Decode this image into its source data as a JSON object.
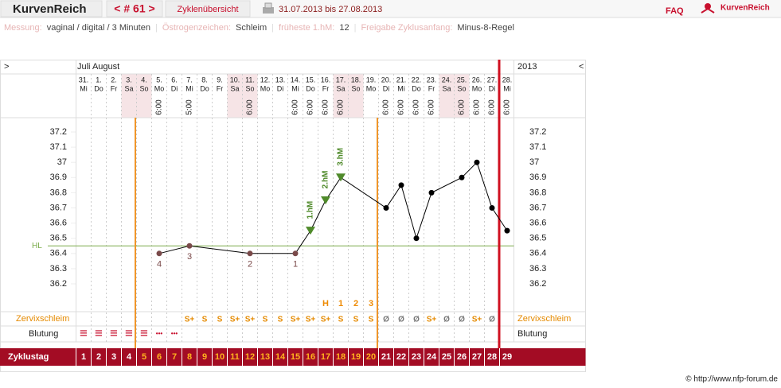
{
  "header": {
    "brand": "KurvenReich",
    "cycle_nav": "< # 61 >",
    "overview": "Zyklenübersicht",
    "date_range": "31.07.2013 bis 27.08.2013",
    "faq": "FAQ",
    "logo": "KurvenReich"
  },
  "info": [
    {
      "label": "Messung:",
      "value": "vaginal / digital / 3 Minuten"
    },
    {
      "label": "Östrogenzeichen:",
      "value": "Schleim"
    },
    {
      "label": "früheste 1.hM:",
      "value": 12
    },
    {
      "label": "Freigabe Zyklusanfang:",
      "value": "Minus-8-Regel"
    }
  ],
  "footer": "© http://www.nfp-forum.de",
  "chart_data": {
    "type": "line",
    "nav_prev": ">",
    "nav_next": "<",
    "months": "Juli August",
    "year": "2013",
    "categories": [
      "31.",
      "1.",
      "2.",
      "3.",
      "4.",
      "5.",
      "6.",
      "7.",
      "8.",
      "9.",
      "10.",
      "11.",
      "12.",
      "13.",
      "14.",
      "15.",
      "16.",
      "17.",
      "18.",
      "19.",
      "20.",
      "21.",
      "22.",
      "23.",
      "24.",
      "25.",
      "26.",
      "27.",
      "28."
    ],
    "weekdays": [
      "Mi",
      "Do",
      "Fr",
      "Sa",
      "So",
      "Mo",
      "Di",
      "Mi",
      "Do",
      "Fr",
      "Sa",
      "So",
      "Mo",
      "Di",
      "Mi",
      "Do",
      "Fr",
      "Sa",
      "So",
      "Mo",
      "Di",
      "Mi",
      "Do",
      "Fr",
      "Sa",
      "So",
      "Mo",
      "Di",
      "Mi"
    ],
    "times": [
      null,
      null,
      null,
      null,
      null,
      "6:00",
      null,
      "5:00",
      null,
      null,
      null,
      "6:00",
      null,
      null,
      "6:00",
      "6:00",
      "6:00",
      "6:00",
      null,
      null,
      "6:00",
      "6:00",
      "6:00",
      "6:00",
      null,
      "6:00",
      "6:00",
      "6:00",
      "6:00"
    ],
    "cycle_days": [
      1,
      2,
      3,
      4,
      5,
      6,
      7,
      8,
      9,
      10,
      11,
      12,
      13,
      14,
      15,
      16,
      17,
      18,
      19,
      20,
      21,
      22,
      23,
      24,
      25,
      26,
      27,
      28,
      29
    ],
    "temperature": {
      "x": [
        6,
        8,
        12,
        15,
        16,
        17,
        18,
        21,
        22,
        23,
        24,
        26,
        27,
        28,
        29
      ],
      "values": [
        36.4,
        36.45,
        36.4,
        36.4,
        36.55,
        36.75,
        36.9,
        36.7,
        36.85,
        36.5,
        36.8,
        36.9,
        37.0,
        36.7,
        36.55
      ],
      "point_labels": [
        "4",
        "3",
        "2",
        "1",
        "1.hM",
        "2.hM",
        "3.hM",
        null,
        null,
        null,
        null,
        null,
        null,
        null,
        null
      ],
      "color": "#000000"
    },
    "ylim": [
      36.1,
      37.3
    ],
    "yticks": [
      36.2,
      36.3,
      36.4,
      36.5,
      36.6,
      36.7,
      36.8,
      36.9,
      {
        "value": 37.0,
        "label": "37"
      },
      37.1,
      37.2
    ],
    "hl": {
      "label": "HL",
      "value": 36.45,
      "color": "#7aab4a"
    },
    "peak_labels": [
      null,
      null,
      null,
      null,
      null,
      null,
      null,
      null,
      null,
      null,
      null,
      null,
      null,
      null,
      null,
      null,
      "H",
      "1",
      "2",
      "3",
      null,
      null,
      null,
      null,
      null,
      null,
      null,
      null,
      null
    ],
    "mucus_label": "Zervixschleim",
    "mucus": [
      null,
      null,
      null,
      null,
      null,
      null,
      null,
      "S+",
      "S",
      "S",
      "S+",
      "S+",
      "S",
      "S",
      "S+",
      "S+",
      "S+",
      "S",
      "S",
      "S",
      "Ø",
      "Ø",
      "Ø",
      "S+",
      "Ø",
      "Ø",
      "S+",
      "Ø",
      null
    ],
    "bleeding_label": "Blutung",
    "bleeding": [
      "≡",
      "≡",
      "≡",
      "≡",
      "≡",
      "•••",
      "•••",
      null,
      null,
      null,
      null,
      null,
      null,
      null,
      null,
      null,
      null,
      null,
      null,
      null,
      null,
      null,
      null,
      null,
      null,
      null,
      null,
      null,
      null
    ],
    "cycle_day_label": "Zyklustag"
  }
}
